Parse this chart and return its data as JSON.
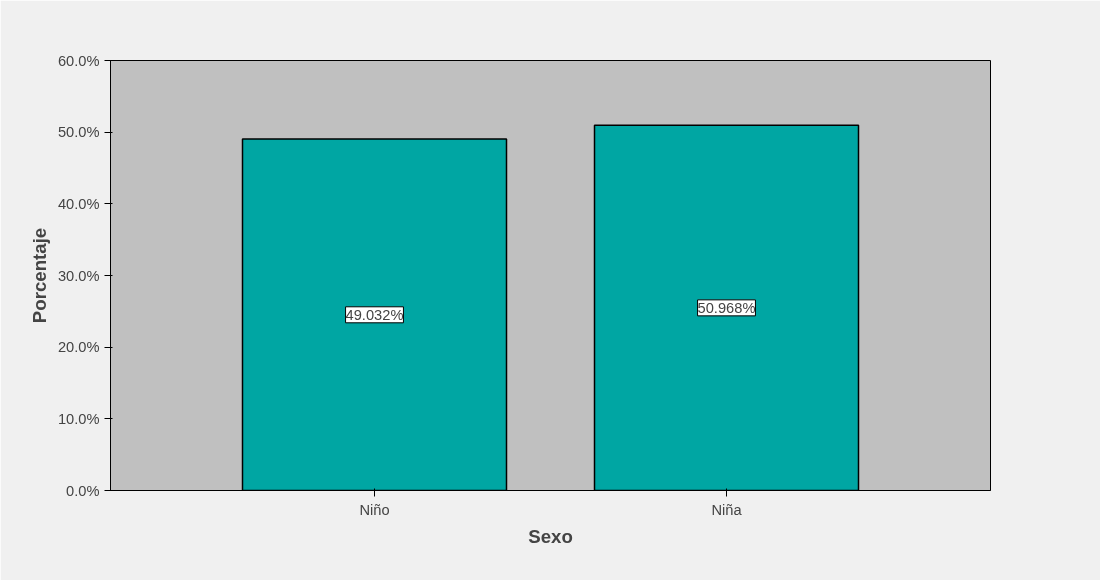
{
  "chart_data": {
    "type": "bar",
    "xlabel": "Sexo",
    "ylabel": "Porcentaje",
    "categories": [
      "Niño",
      "Niña"
    ],
    "values": [
      49.032,
      50.968
    ],
    "value_labels": [
      "49.032%",
      "50.968%"
    ],
    "color": "#00a6a3",
    "ylim": [
      0,
      60
    ],
    "yticks": [
      {
        "value": 0,
        "label": "0.0%"
      },
      {
        "value": 10,
        "label": "10.0%"
      },
      {
        "value": 20,
        "label": "20.0%"
      },
      {
        "value": 30,
        "label": "30.0%"
      },
      {
        "value": 40,
        "label": "40.0%"
      },
      {
        "value": 50,
        "label": "50.0%"
      },
      {
        "value": 60,
        "label": "60.0%"
      }
    ],
    "grid": false
  }
}
